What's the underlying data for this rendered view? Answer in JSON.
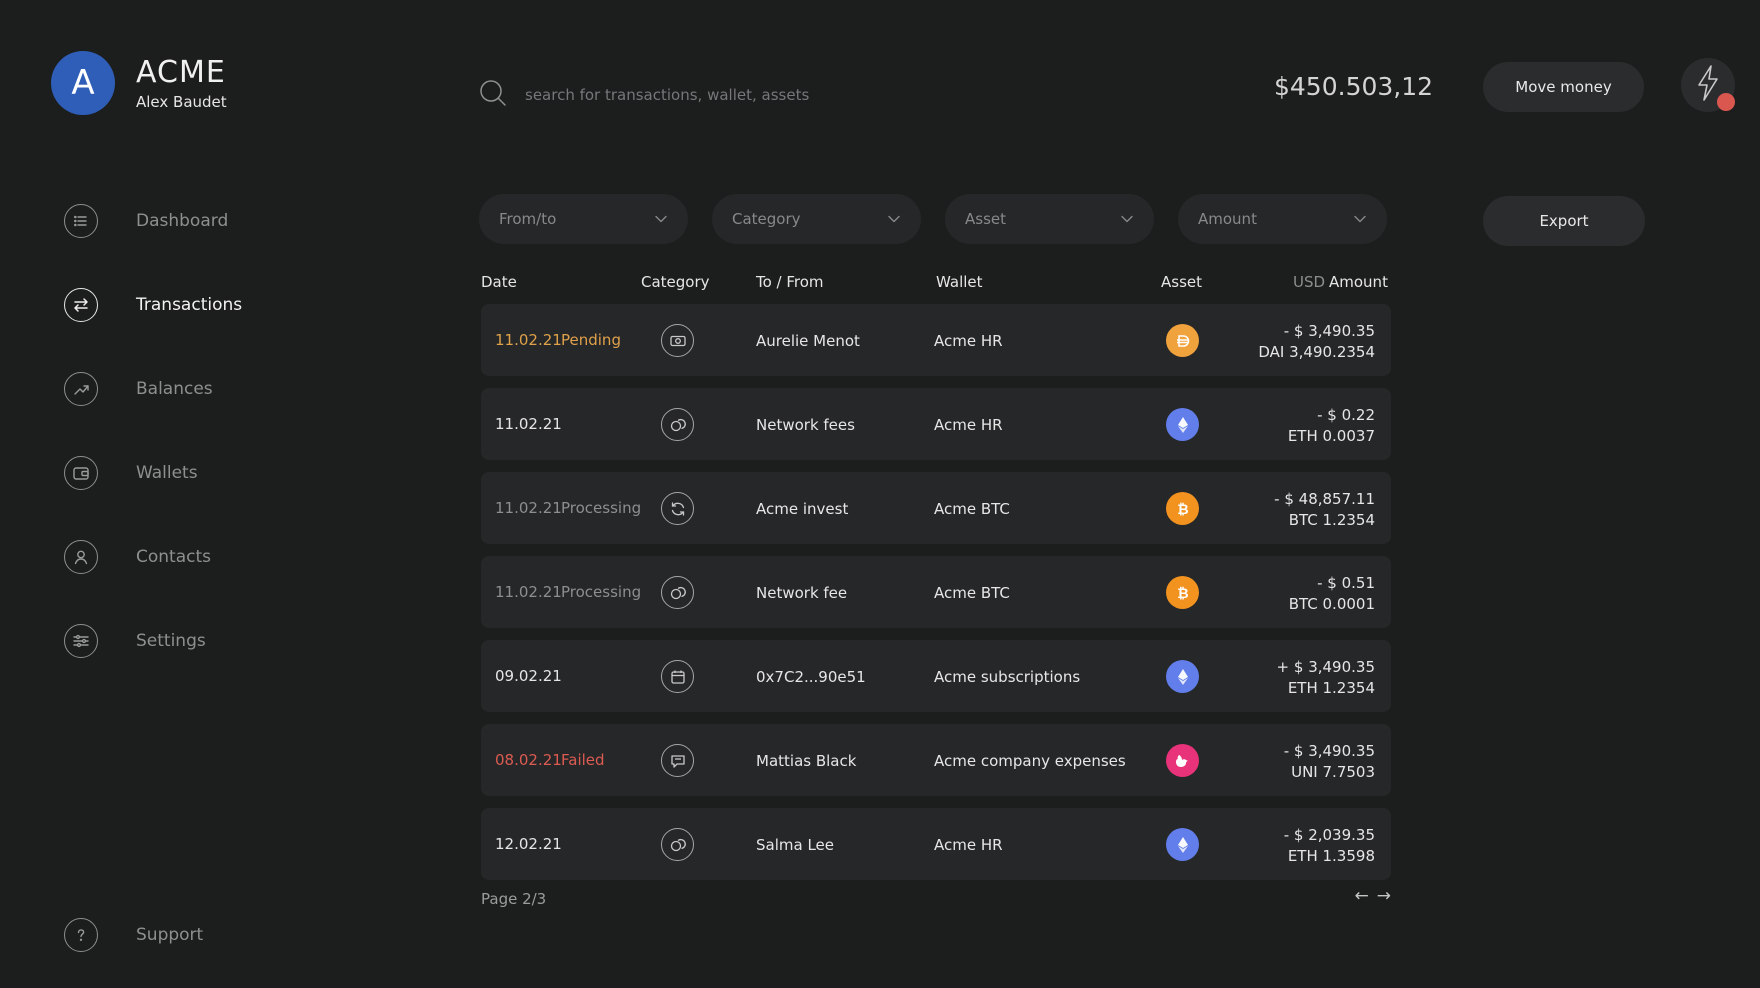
{
  "brand": {
    "initial": "A",
    "name": "ACME",
    "user": "Alex Baudet"
  },
  "nav": [
    {
      "label": "Dashboard",
      "icon": "list-icon",
      "active": false
    },
    {
      "label": "Transactions",
      "icon": "transfer-icon",
      "active": true
    },
    {
      "label": "Balances",
      "icon": "trend-up-icon",
      "active": false
    },
    {
      "label": "Wallets",
      "icon": "wallet-icon",
      "active": false
    },
    {
      "label": "Contacts",
      "icon": "user-icon",
      "active": false
    },
    {
      "label": "Settings",
      "icon": "sliders-icon",
      "active": false
    }
  ],
  "support": {
    "label": "Support",
    "icon": "help-icon"
  },
  "search": {
    "placeholder": "search for transactions, wallet, assets",
    "value": ""
  },
  "header": {
    "balance": "$450.503,12",
    "move_money_label": "Move money",
    "export_label": "Export",
    "bolt_icon": "bolt-icon"
  },
  "filters": [
    "From/to",
    "Category",
    "Asset",
    "Amount"
  ],
  "table": {
    "headers": {
      "date": "Date",
      "category": "Category",
      "to_from": "To / From",
      "wallet": "Wallet",
      "asset": "Asset",
      "usd": "USD",
      "amount": "Amount"
    },
    "rows": [
      {
        "date": "11.02.21",
        "status": "Pending",
        "state": "pending",
        "category_icon": "cash-icon",
        "to": "Aurelie Menot",
        "wallet": "Acme HR",
        "asset": "DAI",
        "asset_color": "#f0a23c",
        "usd": "- $ 3,490.35",
        "crypto": "DAI 3,490.2354"
      },
      {
        "date": "11.02.21",
        "status": "",
        "state": "done",
        "category_icon": "coins-icon",
        "to": "Network fees",
        "wallet": "Acme HR",
        "asset": "ETH",
        "asset_color": "#627eea",
        "usd": "- $ 0.22",
        "crypto": "ETH 0.0037"
      },
      {
        "date": "11.02.21",
        "status": "Processing",
        "state": "processing",
        "category_icon": "refresh-icon",
        "to": "Acme invest",
        "wallet": "Acme BTC",
        "asset": "BTC",
        "asset_color": "#f2931f",
        "usd": "- $ 48,857.11",
        "crypto": "BTC 1.2354"
      },
      {
        "date": "11.02.21",
        "status": "Processing",
        "state": "processing",
        "category_icon": "coins-icon",
        "to": "Network fee",
        "wallet": "Acme BTC",
        "asset": "BTC",
        "asset_color": "#f2931f",
        "usd": "- $ 0.51",
        "crypto": "BTC 0.0001"
      },
      {
        "date": "09.02.21",
        "status": "",
        "state": "done",
        "category_icon": "calendar-icon",
        "to": "0x7C2...90e51",
        "wallet": "Acme subscriptions",
        "asset": "ETH",
        "asset_color": "#627eea",
        "usd": "+ $ 3,490.35",
        "crypto": "ETH 1.2354"
      },
      {
        "date": "08.02.21",
        "status": "Failed",
        "state": "failed",
        "category_icon": "chat-icon",
        "to": "Mattias Black",
        "wallet": "Acme company expenses",
        "asset": "UNI",
        "asset_color": "#e8337a",
        "usd": "- $ 3,490.35",
        "crypto": "UNI 7.7503"
      },
      {
        "date": "12.02.21",
        "status": "",
        "state": "done",
        "category_icon": "coins-icon",
        "to": "Salma Lee",
        "wallet": "Acme HR",
        "asset": "ETH",
        "asset_color": "#627eea",
        "usd": "- $ 2,039.35",
        "crypto": "ETH 1.3598"
      }
    ]
  },
  "pagination": {
    "label": "Page 2/3",
    "prev": "←",
    "next": "→"
  }
}
